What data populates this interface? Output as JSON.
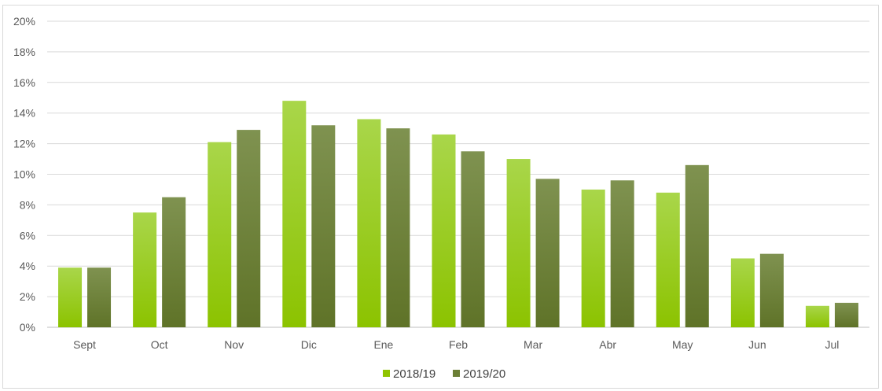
{
  "chart_data": {
    "type": "bar",
    "title": "",
    "xlabel": "",
    "ylabel": "",
    "categories": [
      "Sept",
      "Oct",
      "Nov",
      "Dic",
      "Ene",
      "Feb",
      "Mar",
      "Abr",
      "May",
      "Jun",
      "Jul"
    ],
    "series": [
      {
        "name": "2018/19",
        "color": "#8fc400",
        "values": [
          3.9,
          7.5,
          12.1,
          14.8,
          13.6,
          12.6,
          11.0,
          9.0,
          8.8,
          4.5,
          1.4
        ]
      },
      {
        "name": "2019/20",
        "color": "#6b7f35",
        "values": [
          3.9,
          8.5,
          12.9,
          13.2,
          13.0,
          11.5,
          9.7,
          9.6,
          10.6,
          4.8,
          1.6
        ]
      }
    ],
    "ylim": [
      0,
      20
    ],
    "y_ticks": [
      "0%",
      "2%",
      "4%",
      "6%",
      "8%",
      "10%",
      "12%",
      "14%",
      "16%",
      "18%",
      "20%"
    ],
    "grid": true,
    "legend_position": "bottom-center"
  }
}
